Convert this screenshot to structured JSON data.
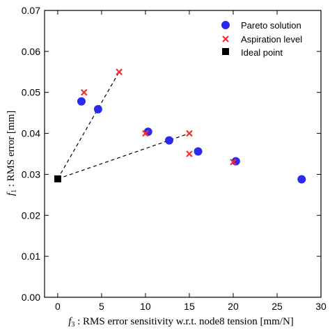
{
  "chart_data": {
    "type": "scatter",
    "xlabel": "f3 : RMS error sensitivity w.r.t. node8 tension [mm/N]",
    "ylabel": "f1 : RMS error [mm]",
    "xlim": [
      -1.5,
      30
    ],
    "ylim": [
      0,
      0.07
    ],
    "xticks": [
      "0",
      "5",
      "10",
      "15",
      "20",
      "25",
      "30"
    ],
    "yticks": [
      "0.00",
      "0.01",
      "0.02",
      "0.03",
      "0.04",
      "0.05",
      "0.06",
      "0.07"
    ],
    "legend_position": "top-right",
    "series": [
      {
        "name": "Pareto solution",
        "marker": "circle",
        "color": "#2b2bf0",
        "points": [
          {
            "x": 2.7,
            "y": 0.0478
          },
          {
            "x": 4.6,
            "y": 0.0459
          },
          {
            "x": 10.3,
            "y": 0.0404
          },
          {
            "x": 12.7,
            "y": 0.0383
          },
          {
            "x": 16.0,
            "y": 0.0356
          },
          {
            "x": 20.3,
            "y": 0.0332
          },
          {
            "x": 27.8,
            "y": 0.0288
          }
        ]
      },
      {
        "name": "Aspiration level",
        "marker": "x",
        "color": "#ff2b2b",
        "points": [
          {
            "x": 3.0,
            "y": 0.05
          },
          {
            "x": 7.0,
            "y": 0.055
          },
          {
            "x": 10.0,
            "y": 0.04
          },
          {
            "x": 15.0,
            "y": 0.04
          },
          {
            "x": 15.0,
            "y": 0.035
          },
          {
            "x": 20.0,
            "y": 0.033
          }
        ]
      },
      {
        "name": "Ideal point",
        "marker": "square",
        "color": "#000000",
        "points": [
          {
            "x": 0.0,
            "y": 0.0289
          }
        ]
      }
    ],
    "reference_lines": [
      {
        "from": {
          "x": 0.0,
          "y": 0.0289
        },
        "to": {
          "x": 7.0,
          "y": 0.055
        }
      },
      {
        "from": {
          "x": 0.0,
          "y": 0.0289
        },
        "to": {
          "x": 15.0,
          "y": 0.04
        }
      }
    ]
  }
}
